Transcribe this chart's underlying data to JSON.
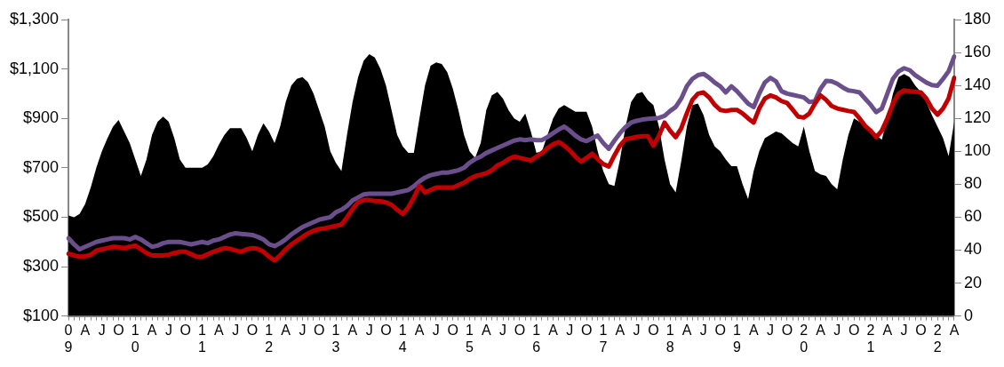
{
  "chart_data": {
    "type": "line",
    "categories": [
      "0\n9",
      null,
      null,
      "A",
      null,
      null,
      "J",
      null,
      null,
      "O",
      null,
      null,
      "1\n0",
      null,
      null,
      "A",
      null,
      null,
      "J",
      null,
      null,
      "O",
      null,
      null,
      "1\n1",
      null,
      null,
      "A",
      null,
      null,
      "J",
      null,
      null,
      "O",
      null,
      null,
      "1\n2",
      null,
      null,
      "A",
      null,
      null,
      "J",
      null,
      null,
      "O",
      null,
      null,
      "1\n3",
      null,
      null,
      "A",
      null,
      null,
      "J",
      null,
      null,
      "O",
      null,
      null,
      "1\n4",
      null,
      null,
      "A",
      null,
      null,
      "J",
      null,
      null,
      "O",
      null,
      null,
      "1\n5",
      null,
      null,
      "A",
      null,
      null,
      "J",
      null,
      null,
      "O",
      null,
      null,
      "1\n6",
      null,
      null,
      "A",
      null,
      null,
      "J",
      null,
      null,
      "O",
      null,
      null,
      "1\n7",
      null,
      null,
      "A",
      null,
      null,
      "J",
      null,
      null,
      "O",
      null,
      null,
      "1\n8",
      null,
      null,
      "A",
      null,
      null,
      "J",
      null,
      null,
      "O",
      null,
      null,
      "1\n9",
      null,
      null,
      "A",
      null,
      null,
      "J",
      null,
      null,
      "O",
      null,
      null,
      "2\n0",
      null,
      null,
      "A",
      null,
      null,
      "J",
      null,
      null,
      "O",
      null,
      null,
      "2\n1",
      null,
      null,
      "A",
      null,
      null,
      "J",
      null,
      null,
      "O",
      null,
      null,
      "2\n2",
      null,
      null,
      "A"
    ],
    "series": [
      {
        "type": "area",
        "axis": "y2",
        "color": "#000000",
        "values": [
          61,
          60,
          62,
          68,
          78,
          90,
          100,
          108,
          115,
          119,
          112,
          105,
          95,
          85,
          95,
          110,
          118,
          121,
          118,
          108,
          95,
          90,
          90,
          90,
          90,
          92,
          97,
          104,
          110,
          114,
          114,
          114,
          108,
          100,
          110,
          117,
          112,
          105,
          115,
          130,
          140,
          144,
          145,
          142,
          135,
          125,
          115,
          100,
          93,
          88,
          110,
          130,
          145,
          155,
          159,
          157,
          150,
          140,
          125,
          110,
          103,
          99,
          99,
          120,
          140,
          152,
          154,
          153,
          148,
          138,
          125,
          110,
          100,
          96,
          105,
          125,
          134,
          136,
          132,
          125,
          120,
          118,
          123,
          112,
          99,
          100,
          110,
          120,
          126,
          128,
          126,
          124,
          124,
          124,
          115,
          100,
          88,
          80,
          79,
          95,
          115,
          130,
          135,
          136,
          131,
          128,
          115,
          95,
          80,
          75,
          94,
          115,
          128,
          129,
          122,
          110,
          103,
          100,
          95,
          91,
          91,
          80,
          71,
          88,
          100,
          108,
          110,
          112,
          111,
          108,
          105,
          103,
          115,
          100,
          88,
          86,
          85,
          80,
          77,
          95,
          110,
          120,
          118,
          115,
          112,
          110,
          107,
          120,
          135,
          145,
          147,
          145,
          140,
          136,
          130,
          122,
          115,
          108,
          97,
          118
        ]
      },
      {
        "type": "line",
        "color": "#6b4f8c",
        "values": [
          415,
          390,
          370,
          380,
          390,
          400,
          405,
          410,
          415,
          415,
          415,
          410,
          420,
          410,
          395,
          380,
          385,
          395,
          400,
          400,
          400,
          395,
          390,
          395,
          400,
          395,
          405,
          410,
          420,
          430,
          435,
          432,
          430,
          428,
          420,
          410,
          390,
          383,
          395,
          410,
          430,
          445,
          460,
          470,
          480,
          490,
          495,
          500,
          520,
          530,
          545,
          568,
          580,
          592,
          595,
          595,
          595,
          595,
          595,
          600,
          605,
          610,
          625,
          645,
          660,
          670,
          675,
          680,
          680,
          685,
          690,
          700,
          720,
          735,
          745,
          760,
          770,
          780,
          790,
          800,
          810,
          815,
          812,
          815,
          812,
          812,
          825,
          840,
          855,
          867,
          850,
          830,
          815,
          808,
          820,
          830,
          800,
          777,
          810,
          840,
          865,
          883,
          890,
          895,
          898,
          900,
          902,
          910,
          930,
          946,
          980,
          1030,
          1060,
          1075,
          1080,
          1065,
          1045,
          1030,
          1005,
          1030,
          1010,
          985,
          960,
          946,
          1000,
          1045,
          1064,
          1050,
          1010,
          1000,
          995,
          990,
          985,
          966,
          970,
          1020,
          1052,
          1050,
          1040,
          1025,
          1013,
          1010,
          1005,
          980,
          955,
          925,
          940,
          1000,
          1060,
          1090,
          1103,
          1095,
          1075,
          1060,
          1045,
          1035,
          1032,
          1060,
          1091,
          1150
        ]
      },
      {
        "type": "line",
        "color": "#c00000",
        "values": [
          352,
          345,
          340,
          342,
          348,
          365,
          370,
          375,
          380,
          378,
          375,
          380,
          385,
          370,
          355,
          345,
          345,
          345,
          348,
          355,
          360,
          360,
          350,
          340,
          340,
          350,
          360,
          368,
          375,
          372,
          365,
          360,
          370,
          375,
          372,
          360,
          340,
          325,
          345,
          370,
          390,
          405,
          420,
          435,
          445,
          452,
          455,
          460,
          465,
          470,
          500,
          533,
          560,
          570,
          570,
          565,
          565,
          560,
          550,
          530,
          513,
          540,
          580,
          627,
          600,
          610,
          620,
          620,
          620,
          620,
          630,
          640,
          655,
          666,
          672,
          678,
          690,
          710,
          720,
          735,
          745,
          740,
          735,
          730,
          745,
          760,
          780,
          795,
          804,
          790,
          770,
          745,
          725,
          740,
          757,
          735,
          715,
          705,
          750,
          790,
          816,
          820,
          825,
          828,
          828,
          789,
          830,
          883,
          850,
          824,
          860,
          920,
          975,
          1000,
          1005,
          985,
          955,
          934,
          930,
          934,
          934,
          920,
          900,
          883,
          940,
          980,
          993,
          985,
          970,
          962,
          935,
          907,
          903,
          920,
          960,
          993,
          975,
          950,
          940,
          935,
          930,
          926,
          900,
          870,
          850,
          824,
          850,
          900,
          960,
          1000,
          1013,
          1010,
          1008,
          1005,
          980,
          940,
          915,
          940,
          981,
          1064
        ]
      }
    ],
    "ylim": [
      100,
      1300
    ],
    "yticks": [
      {
        "value": 100,
        "label": "$100"
      },
      {
        "value": 300,
        "label": "$300"
      },
      {
        "value": 500,
        "label": "$500"
      },
      {
        "value": 700,
        "label": "$700"
      },
      {
        "value": 900,
        "label": "$900"
      },
      {
        "value": 1100,
        "label": "$1,100"
      },
      {
        "value": 1300,
        "label": "$1,300"
      }
    ],
    "y2lim": [
      0,
      180
    ],
    "y2ticks": [
      0,
      20,
      40,
      60,
      80,
      100,
      120,
      140,
      160,
      180
    ],
    "marker": "none",
    "line_style": "solid",
    "grid": false,
    "legend": false
  }
}
